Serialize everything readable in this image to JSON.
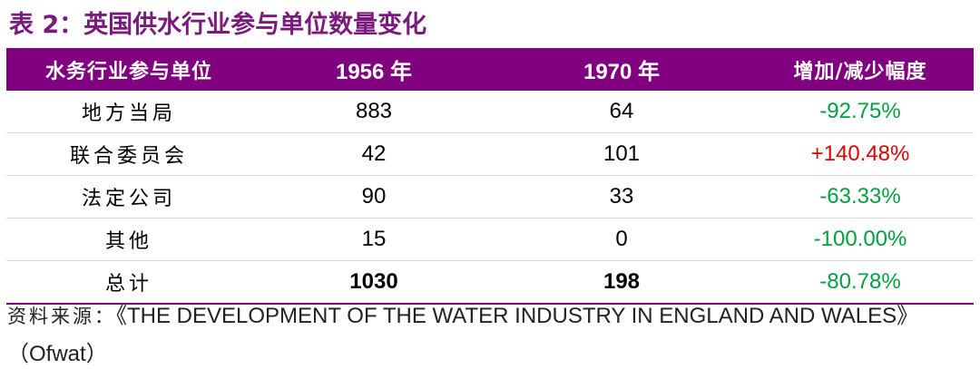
{
  "title": "表 2：英国供水行业参与单位数量变化",
  "table": {
    "headers": [
      "水务行业参与单位",
      "1956 年",
      "1970 年",
      "增加/减少幅度"
    ],
    "rows": [
      {
        "name": "地方当局",
        "y1956": "883",
        "y1970": "64",
        "change": "-92.75%",
        "change_color": "#00a040"
      },
      {
        "name": "联合委员会",
        "y1956": "42",
        "y1970": "101",
        "change": "+140.48%",
        "change_color": "#e00000"
      },
      {
        "name": "法定公司",
        "y1956": "90",
        "y1970": "33",
        "change": "-63.33%",
        "change_color": "#00a040"
      },
      {
        "name": "其他",
        "y1956": "15",
        "y1970": "0",
        "change": "-100.00%",
        "change_color": "#00a040"
      },
      {
        "name": "总计",
        "y1956": "1030",
        "y1970": "198",
        "change": "-80.78%",
        "change_color": "#00a040"
      }
    ],
    "header_color": "#800080"
  },
  "source": {
    "label": "资料来源：",
    "text": "《THE DEVELOPMENT OF THE WATER INDUSTRY IN ENGLAND AND WALES》（Ofwat）"
  }
}
